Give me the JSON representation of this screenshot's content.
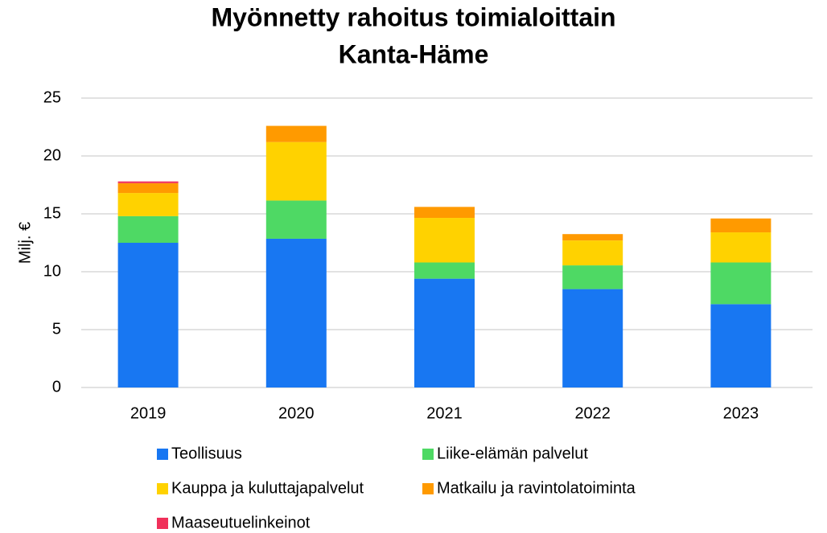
{
  "chart_data": {
    "type": "stacked_bar",
    "title": "Myönnetty rahoitus toimialoittain",
    "subtitle": "Kanta-Häme",
    "y_label": "Milj. €",
    "categories": [
      "2019",
      "2020",
      "2021",
      "2022",
      "2023"
    ],
    "series": [
      {
        "name": "Teollisuus",
        "color": "#1877f2",
        "values": [
          12.5,
          12.85,
          9.4,
          8.5,
          7.2
        ]
      },
      {
        "name": "Liike-elämän palvelut",
        "color": "#4ed964",
        "values": [
          2.3,
          3.3,
          1.4,
          2.05,
          3.6
        ]
      },
      {
        "name": "Kauppa ja kuluttajapalvelut",
        "color": "#ffd200",
        "values": [
          2.0,
          5.05,
          3.85,
          2.15,
          2.6
        ]
      },
      {
        "name": "Matkailu ja ravintolatoiminta",
        "color": "#ff9a00",
        "values": [
          0.85,
          1.4,
          0.95,
          0.55,
          1.2
        ]
      },
      {
        "name": "Maaseutuelinkeinot",
        "color": "#f0305a",
        "values": [
          0.15,
          0,
          0,
          0,
          0
        ]
      }
    ],
    "ylim": [
      0,
      25
    ],
    "yticks": [
      0,
      5,
      10,
      15,
      20,
      25
    ],
    "grid": true
  }
}
